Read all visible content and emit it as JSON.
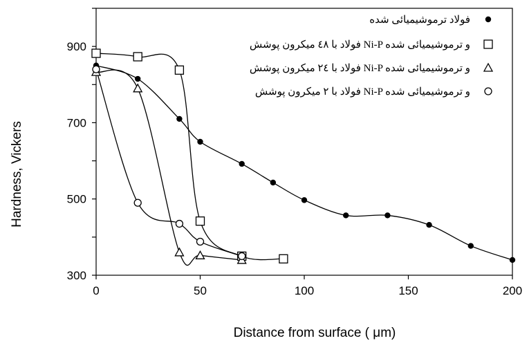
{
  "chart_data": {
    "type": "scatter",
    "xlabel": "Distance from surface (    μm)",
    "ylabel": "Hardness, Vickers",
    "xlim": [
      0,
      200
    ],
    "ylim": [
      300,
      1000
    ],
    "x_ticks": [
      "0",
      "50",
      "100",
      "150",
      "200"
    ],
    "y_ticks": [
      "300",
      "500",
      "700",
      "900"
    ],
    "grid": false,
    "legend_position": "top-right",
    "series": [
      {
        "name": "فولاد ترموشیمیائی شده",
        "marker": "filled-circle",
        "x": [
          0,
          20,
          40,
          50,
          70,
          85,
          100,
          120,
          140,
          160,
          180,
          200
        ],
        "y": [
          850,
          815,
          710,
          650,
          592,
          543,
          497,
          457,
          457,
          432,
          377,
          340
        ]
      },
      {
        "name": "فولاد با ٤٨ میکرون پوشش Ni-P و ترموشیمیائی شده",
        "marker": "open-square",
        "x": [
          0,
          20,
          40,
          50,
          70,
          90
        ],
        "y": [
          882,
          873,
          838,
          442,
          350,
          343
        ]
      },
      {
        "name": "فولاد با ٢٤ میکرون پوشش Ni-P و ترموشیمیائی شده",
        "marker": "open-triangle",
        "x": [
          0,
          20,
          40,
          50,
          70
        ],
        "y": [
          833,
          790,
          360,
          352,
          340
        ]
      },
      {
        "name": "فولاد با ٢ میکرون پوشش Ni-P و ترموشیمیائی شده",
        "marker": "open-circle",
        "x": [
          0,
          20,
          40,
          50,
          70
        ],
        "y": [
          840,
          490,
          435,
          388,
          350
        ]
      }
    ]
  }
}
